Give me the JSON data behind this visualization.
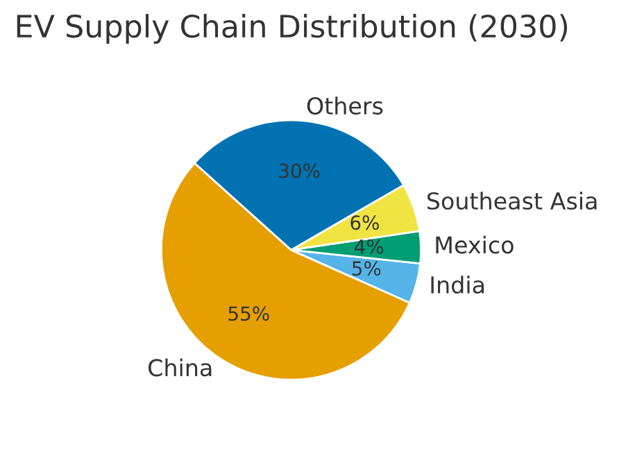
{
  "chart_data": {
    "type": "pie",
    "title": "EV Supply Chain Distribution (2030)",
    "categories": [
      "China",
      "India",
      "Mexico",
      "Southeast Asia",
      "Others"
    ],
    "values": [
      55,
      5,
      4,
      6,
      30
    ],
    "value_labels": [
      "55%",
      "5%",
      "4%",
      "6%",
      "30%"
    ],
    "colors": [
      "#e69f00",
      "#56b4e9",
      "#009e73",
      "#f0e442",
      "#0072b2"
    ],
    "legend": false
  }
}
